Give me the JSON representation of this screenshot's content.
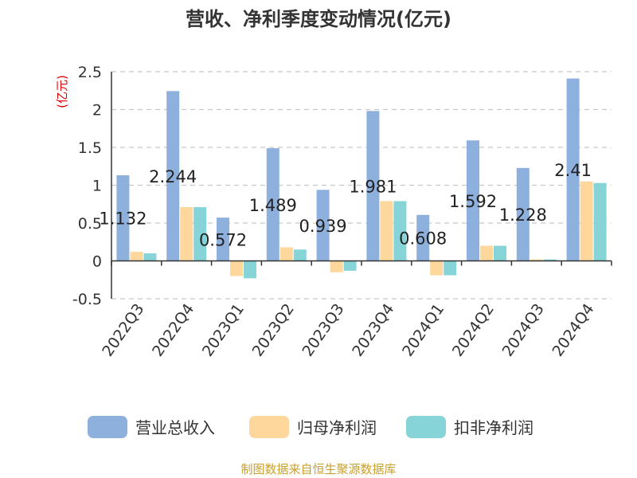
{
  "chart_data": {
    "type": "bar",
    "title": "营收、净利季度变动情况(亿元)",
    "ylabel": "(亿元)",
    "ylim": [
      -0.5,
      2.5
    ],
    "yticks": [
      "2.5",
      "2",
      "1.5",
      "1",
      "0.5",
      "0",
      "-0.5"
    ],
    "grid": true,
    "legend_position": "bottom",
    "categories": [
      "2022Q3",
      "2022Q4",
      "2023Q1",
      "2023Q2",
      "2023Q3",
      "2023Q4",
      "2024Q1",
      "2024Q2",
      "2024Q3",
      "2024Q4"
    ],
    "series": [
      {
        "name": "营业总收入",
        "color": "#8eb0dc",
        "values": [
          1.132,
          2.244,
          0.572,
          1.489,
          0.939,
          1.981,
          0.608,
          1.592,
          1.228,
          2.41
        ],
        "labels": [
          "1.132",
          "2.244",
          "0.572",
          "1.489",
          "0.939",
          "1.981",
          "0.608",
          "1.592",
          "1.228",
          "2.41"
        ]
      },
      {
        "name": "归母净利润",
        "color": "#fdd79b",
        "values": [
          0.12,
          0.71,
          -0.2,
          0.18,
          -0.15,
          0.79,
          -0.19,
          0.2,
          0.02,
          1.05
        ]
      },
      {
        "name": "扣非净利润",
        "color": "#86d4d8",
        "values": [
          0.1,
          0.71,
          -0.23,
          0.15,
          -0.13,
          0.79,
          -0.19,
          0.2,
          0.02,
          1.03
        ]
      }
    ]
  },
  "source": "制图数据来自恒生聚源数据库"
}
